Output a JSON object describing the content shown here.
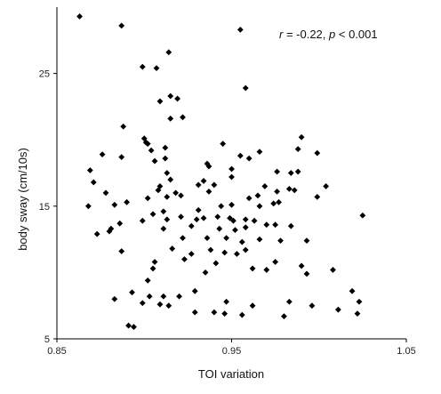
{
  "chart_data": {
    "type": "scatter",
    "title": "",
    "xlabel": "TOI variation",
    "ylabel": "body sway (cm/10s)",
    "annotation": {
      "r_symbol": "r",
      "r_text": " = -0.22, ",
      "p_symbol": "p",
      "p_text": " < 0.001"
    },
    "xlim": [
      0.85,
      1.05
    ],
    "ylim": [
      5,
      30
    ],
    "xticks": [
      0.85,
      0.95,
      1.05
    ],
    "xtick_labels": [
      "0.85",
      "0.95",
      "1.05"
    ],
    "yticks": [
      5,
      15,
      25
    ],
    "ytick_labels": [
      "5",
      "15",
      "25"
    ],
    "grid": false,
    "legend": "none",
    "marker_color": "#000000",
    "points": [
      [
        0.863,
        29.3
      ],
      [
        0.887,
        28.6
      ],
      [
        0.914,
        26.6
      ],
      [
        0.955,
        28.3
      ],
      [
        0.899,
        25.5
      ],
      [
        0.907,
        25.4
      ],
      [
        0.958,
        23.9
      ],
      [
        0.915,
        23.3
      ],
      [
        0.919,
        23.1
      ],
      [
        0.909,
        22.9
      ],
      [
        0.922,
        21.7
      ],
      [
        0.915,
        21.6
      ],
      [
        0.888,
        21.0
      ],
      [
        0.9,
        20.1
      ],
      [
        0.901,
        19.8
      ],
      [
        0.912,
        19.4
      ],
      [
        0.945,
        19.7
      ],
      [
        0.966,
        19.1
      ],
      [
        0.99,
        20.2
      ],
      [
        0.902,
        19.7
      ],
      [
        0.904,
        19.2
      ],
      [
        0.988,
        19.3
      ],
      [
        0.999,
        19.0
      ],
      [
        0.876,
        18.9
      ],
      [
        0.887,
        18.7
      ],
      [
        0.906,
        18.4
      ],
      [
        0.912,
        18.6
      ],
      [
        0.955,
        18.8
      ],
      [
        0.96,
        18.6
      ],
      [
        0.936,
        18.2
      ],
      [
        0.937,
        18.0
      ],
      [
        0.869,
        17.7
      ],
      [
        0.913,
        17.5
      ],
      [
        0.95,
        17.8
      ],
      [
        0.976,
        17.6
      ],
      [
        0.984,
        17.5
      ],
      [
        0.988,
        17.6
      ],
      [
        0.915,
        17.0
      ],
      [
        0.934,
        16.9
      ],
      [
        0.95,
        17.2
      ],
      [
        0.909,
        16.5
      ],
      [
        0.871,
        16.8
      ],
      [
        0.931,
        16.6
      ],
      [
        0.969,
        16.5
      ],
      [
        0.983,
        16.3
      ],
      [
        0.976,
        16.1
      ],
      [
        0.986,
        16.2
      ],
      [
        1.004,
        16.5
      ],
      [
        0.94,
        16.6
      ],
      [
        0.937,
        16.1
      ],
      [
        0.878,
        16.0
      ],
      [
        0.908,
        16.2
      ],
      [
        0.918,
        16.0
      ],
      [
        0.921,
        15.8
      ],
      [
        0.913,
        15.7
      ],
      [
        0.96,
        15.6
      ],
      [
        0.965,
        15.8
      ],
      [
        0.974,
        15.2
      ],
      [
        0.902,
        15.6
      ],
      [
        0.89,
        15.3
      ],
      [
        0.883,
        15.1
      ],
      [
        0.868,
        15.0
      ],
      [
        0.944,
        15.0
      ],
      [
        0.95,
        15.1
      ],
      [
        0.966,
        15.0
      ],
      [
        0.977,
        15.3
      ],
      [
        0.999,
        15.7
      ],
      [
        0.931,
        14.7
      ],
      [
        0.911,
        14.6
      ],
      [
        0.905,
        14.4
      ],
      [
        0.921,
        14.2
      ],
      [
        0.913,
        14.0
      ],
      [
        0.93,
        14.0
      ],
      [
        0.934,
        14.1
      ],
      [
        0.942,
        14.2
      ],
      [
        0.949,
        14.1
      ],
      [
        0.951,
        13.9
      ],
      [
        0.958,
        14.0
      ],
      [
        0.963,
        13.9
      ],
      [
        0.97,
        13.6
      ],
      [
        0.975,
        13.6
      ],
      [
        0.984,
        13.5
      ],
      [
        1.025,
        14.3
      ],
      [
        0.899,
        13.9
      ],
      [
        0.886,
        13.7
      ],
      [
        0.881,
        13.3
      ],
      [
        0.88,
        13.1
      ],
      [
        0.873,
        12.9
      ],
      [
        0.911,
        13.3
      ],
      [
        0.927,
        13.5
      ],
      [
        0.943,
        13.3
      ],
      [
        0.952,
        13.2
      ],
      [
        0.958,
        13.4
      ],
      [
        0.922,
        12.6
      ],
      [
        0.936,
        12.6
      ],
      [
        0.947,
        12.6
      ],
      [
        0.956,
        12.3
      ],
      [
        0.966,
        12.5
      ],
      [
        0.978,
        12.4
      ],
      [
        0.993,
        12.4
      ],
      [
        0.916,
        11.8
      ],
      [
        0.938,
        11.7
      ],
      [
        0.946,
        11.5
      ],
      [
        0.953,
        11.4
      ],
      [
        0.958,
        11.7
      ],
      [
        0.927,
        11.4
      ],
      [
        0.923,
        11.0
      ],
      [
        0.887,
        11.6
      ],
      [
        0.906,
        10.8
      ],
      [
        0.962,
        10.3
      ],
      [
        0.97,
        10.2
      ],
      [
        0.975,
        10.8
      ],
      [
        0.99,
        10.5
      ],
      [
        0.941,
        10.7
      ],
      [
        0.905,
        10.3
      ],
      [
        0.935,
        10.0
      ],
      [
        1.008,
        10.2
      ],
      [
        0.993,
        9.9
      ],
      [
        0.902,
        9.4
      ],
      [
        0.929,
        8.6
      ],
      [
        0.893,
        8.5
      ],
      [
        0.903,
        8.2
      ],
      [
        0.911,
        8.2
      ],
      [
        0.92,
        8.2
      ],
      [
        0.883,
        8.0
      ],
      [
        0.899,
        7.7
      ],
      [
        0.909,
        7.6
      ],
      [
        0.914,
        7.5
      ],
      [
        0.947,
        7.8
      ],
      [
        0.962,
        7.5
      ],
      [
        0.983,
        7.8
      ],
      [
        0.996,
        7.5
      ],
      [
        1.023,
        7.8
      ],
      [
        1.011,
        7.2
      ],
      [
        1.019,
        8.6
      ],
      [
        1.022,
        6.9
      ],
      [
        0.929,
        7.0
      ],
      [
        0.94,
        7.0
      ],
      [
        0.946,
        6.9
      ],
      [
        0.956,
        6.8
      ],
      [
        0.98,
        6.7
      ],
      [
        0.891,
        6.0
      ],
      [
        0.894,
        5.9
      ]
    ]
  }
}
